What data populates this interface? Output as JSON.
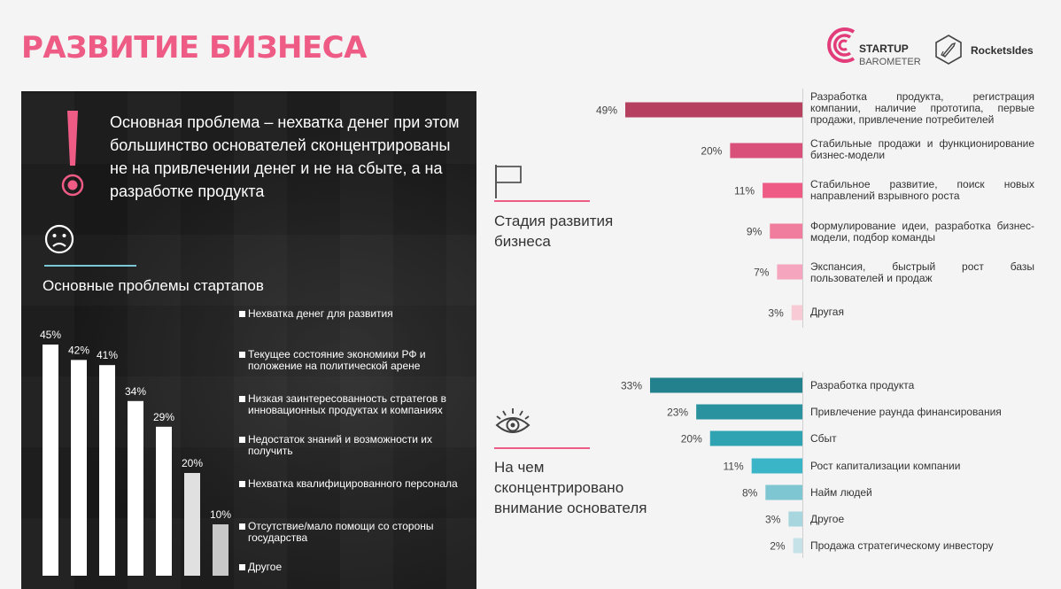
{
  "header": {
    "title": "РАЗВИТИЕ БИЗНЕСА",
    "logo1_line1": "STARTUP",
    "logo1_line2": "BAROMETER",
    "logo2": "RocketsIdes"
  },
  "left_panel": {
    "headline": "Основная проблема – нехватка денег при этом большинство основателей сконцентрированы не на привлечении денег и не на сбыте, а на разработке продукта",
    "problems_title": "Основные проблемы стартапов"
  },
  "stage_section": {
    "title_line1": "Стадия развития",
    "title_line2": "бизнеса"
  },
  "focus_section": {
    "title_line1": "На чем",
    "title_line2": "сконцентрировано",
    "title_line3": "внимание основателя"
  },
  "colors": {
    "accent": "#ee5b85",
    "stage": [
      "#b5405f",
      "#d9507a",
      "#ee5b85",
      "#f07d9e",
      "#f5a5bd",
      "#f8cad6"
    ],
    "focus": [
      "#23808d",
      "#29929e",
      "#2fa3b2",
      "#3ab5c7",
      "#7ec6d2",
      "#a8d6df",
      "#c4e2e8"
    ]
  },
  "chart_data": [
    {
      "type": "bar",
      "orientation": "vertical",
      "title": "Основные проблемы стартапов",
      "categories": [
        "Нехватка денег для развития",
        "Текущее состояние экономики РФ и положение на политической арене",
        "Низкая заинтересованность стратегов в инновационных продуктах и компаниях",
        "Недостаток знаний и возможности их получить",
        "Нехватка квалифицированного персонала",
        "Отсутствие/мало помощи со стороны государства",
        "Другое"
      ],
      "values": [
        45,
        42,
        41,
        34,
        29,
        20,
        10
      ],
      "value_labels": [
        "45%",
        "42%",
        "41%",
        "34%",
        "29%",
        "20%",
        "10%"
      ]
    },
    {
      "type": "bar",
      "orientation": "horizontal",
      "title": "Стадия развития бизнеса",
      "categories": [
        "Разработка продукта, регистрация компании, наличие прототипа, первые продажи, привлечение потребителей",
        "Стабильные продажи и функционирование бизнес-модели",
        "Стабильное развитие, поиск новых направлений взрывного роста",
        "Формулирование идеи, разработка бизнес-модели, подбор команды",
        "Экспансия, быстрый рост базы пользователей и продаж",
        "Другая"
      ],
      "values": [
        49,
        20,
        11,
        9,
        7,
        3
      ],
      "value_labels": [
        "49%",
        "20%",
        "11%",
        "9%",
        "7%",
        "3%"
      ]
    },
    {
      "type": "bar",
      "orientation": "horizontal",
      "title": "На чем сконцентрировано внимание основателя",
      "categories": [
        "Разработка продукта",
        "Привлечение раунда финансирования",
        "Сбыт",
        "Рост капитализации компании",
        "Найм людей",
        "Другое",
        "Продажа стратегическому инвестору"
      ],
      "values": [
        33,
        23,
        20,
        11,
        8,
        3,
        2
      ],
      "value_labels": [
        "33%",
        "23%",
        "20%",
        "11%",
        "8%",
        "3%",
        "2%"
      ]
    }
  ]
}
